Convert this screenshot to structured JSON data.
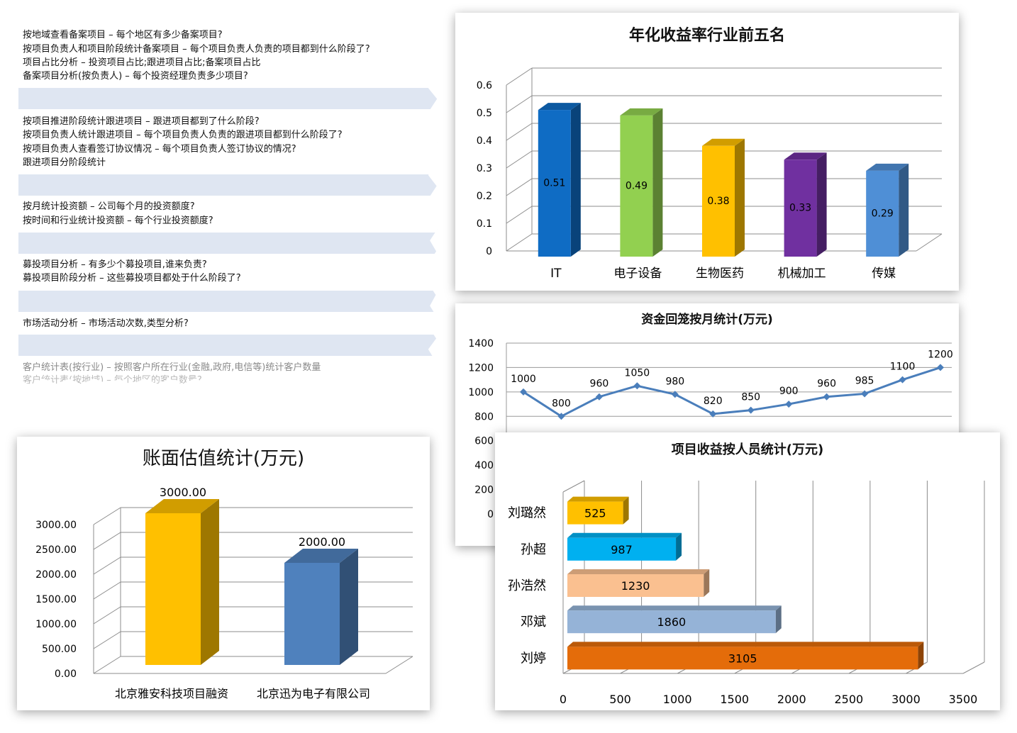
{
  "questions": {
    "groups": [
      [
        "按地域查看备案项目 – 每个地区有多少备案项目?",
        "按项目负责人和项目阶段统计备案项目 – 每个项目负责人负责的项目都到什么阶段了?",
        "项目占比分析 – 投资项目占比;跟进项目占比;备案项目占比",
        "备案项目分析(按负责人) – 每个投资经理负责多少项目?"
      ],
      [
        "按项目推进阶段统计跟进项目 – 跟进项目都到了什么阶段?",
        "按项目负责人统计跟进项目 – 每个项目负责人负责的跟进项目都到什么阶段了?",
        "按项目负责人查看签订协议情况 – 每个项目负责人签订协议的情况?",
        "跟进项目分阶段统计"
      ],
      [
        "按月统计投资额 – 公司每个月的投资额度?",
        "按时间和行业统计投资额 – 每个行业投资额度?"
      ],
      [
        "募投项目分析 – 有多少个募投项目,谁来负责?",
        "募投项目阶段分析 – 这些募投项目都处于什么阶段了?"
      ],
      [
        "市场活动分析 – 市场活动次数,类型分析?"
      ],
      [
        "客户统计表(按行业) – 按照客户所在行业(金融,政府,电信等)统计客户数量",
        "客户统计表(按地域) – 每个地区的客户数量?"
      ]
    ]
  },
  "chart_data": [
    {
      "type": "bar",
      "title": "年化收益率行业前五名",
      "categories": [
        "IT",
        "电子设备",
        "生物医药",
        "机械加工",
        "传媒"
      ],
      "values": [
        0.51,
        0.49,
        0.38,
        0.33,
        0.29
      ],
      "value_labels": [
        "0.51",
        "0.49",
        "0.38",
        "0.33",
        "0.29"
      ],
      "colors": [
        "#0f6cc4",
        "#92d050",
        "#ffc000",
        "#7030a0",
        "#4f8fd6"
      ],
      "ylim": [
        0,
        0.6
      ],
      "yticks": [
        "0",
        "0.1",
        "0.2",
        "0.3",
        "0.4",
        "0.5",
        "0.6"
      ],
      "grid": true,
      "style": "3d"
    },
    {
      "type": "line",
      "title": "资金回笼按月统计(万元)",
      "values": [
        1000,
        800,
        960,
        1050,
        980,
        820,
        850,
        900,
        960,
        985,
        1100,
        1200
      ],
      "value_labels": [
        "1000",
        "800",
        "960",
        "1050",
        "980",
        "820",
        "850",
        "900",
        "960",
        "985",
        "1100",
        "1200"
      ],
      "ylim": [
        0,
        1400
      ],
      "yticks": [
        "0",
        "200",
        "400",
        "600",
        "800",
        "1000",
        "1200",
        "1400"
      ],
      "color": "#4a7ebb",
      "grid": true
    },
    {
      "type": "bar",
      "title": "账面估值统计(万元)",
      "categories": [
        "北京雅安科技项目融资",
        "北京迅为电子有限公司"
      ],
      "values": [
        3000,
        2000
      ],
      "value_labels": [
        "3000.00",
        "2000.00"
      ],
      "colors": [
        "#ffc000",
        "#4f81bd"
      ],
      "ylim": [
        0,
        3000
      ],
      "yticks": [
        "0.00",
        "500.00",
        "1000.00",
        "1500.00",
        "2000.00",
        "2500.00",
        "3000.00"
      ],
      "grid": true,
      "style": "3d"
    },
    {
      "type": "bar",
      "orientation": "horizontal",
      "title": "项目收益按人员统计(万元)",
      "categories": [
        "刘璐然",
        "孙超",
        "孙浩然",
        "邓斌",
        "刘婷"
      ],
      "values": [
        525,
        987,
        1230,
        1860,
        3105
      ],
      "value_labels": [
        "525",
        "987",
        "1230",
        "1860",
        "3105"
      ],
      "colors": [
        "#ffc000",
        "#00b0f0",
        "#fac090",
        "#95b3d7",
        "#e46c0a"
      ],
      "xlim": [
        0,
        3500
      ],
      "xticks": [
        "0",
        "500",
        "1000",
        "1500",
        "2000",
        "2500",
        "3000",
        "3500"
      ],
      "grid": true,
      "style": "3d"
    }
  ]
}
